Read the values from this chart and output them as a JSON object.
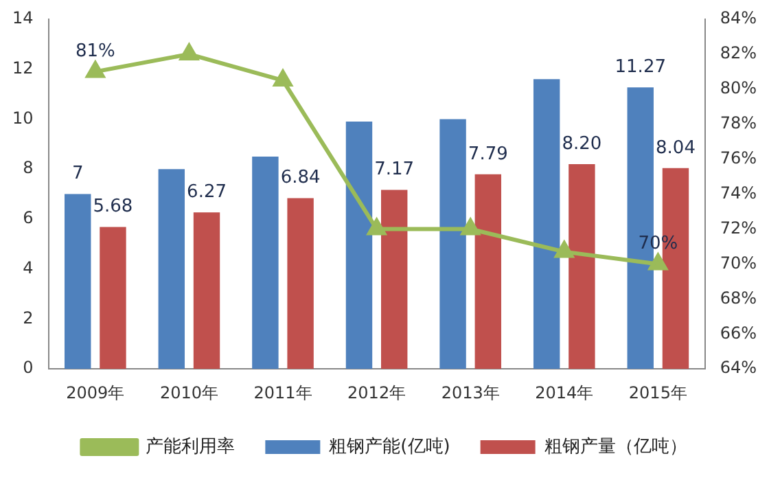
{
  "chart_data": {
    "type": "bar",
    "categories": [
      "2009年",
      "2010年",
      "2011年",
      "2012年",
      "2013年",
      "2014年",
      "2015年"
    ],
    "series": [
      {
        "name": "粗钢产能(亿吨)",
        "color": "#4f81bd",
        "values": [
          7,
          8,
          8.5,
          9.9,
          10,
          11.6,
          11.27
        ],
        "value_labels": [
          "7",
          null,
          null,
          null,
          null,
          null,
          "11.27"
        ]
      },
      {
        "name": "粗钢产量（亿吨）",
        "color": "#c0504d",
        "values": [
          5.68,
          6.27,
          6.84,
          7.17,
          7.79,
          8.2,
          8.04
        ],
        "value_labels": [
          "5.68",
          "6.27",
          "6.84",
          "7.17",
          "7.79",
          "8.20",
          "8.04"
        ]
      },
      {
        "name": "产能利用率",
        "type": "line",
        "axis": "y2",
        "color": "#9bbb59",
        "marker": "triangle",
        "values": [
          81,
          82,
          80.5,
          72,
          72,
          70.7,
          70
        ],
        "value_labels": [
          "81%",
          null,
          null,
          null,
          null,
          null,
          "70%"
        ]
      }
    ],
    "ylim": [
      0,
      14
    ],
    "yticks": [
      0,
      2,
      4,
      6,
      8,
      10,
      12,
      14
    ],
    "y2lim": [
      64,
      84
    ],
    "y2ticks": [
      {
        "value": 64,
        "label": "64%"
      },
      {
        "value": 66,
        "label": "66%"
      },
      {
        "value": 68,
        "label": "68%"
      },
      {
        "value": 70,
        "label": "70%"
      },
      {
        "value": 72,
        "label": "72%"
      },
      {
        "value": 74,
        "label": "74%"
      },
      {
        "value": 76,
        "label": "76%"
      },
      {
        "value": 78,
        "label": "78%"
      },
      {
        "value": 80,
        "label": "80%"
      },
      {
        "value": 82,
        "label": "82%"
      },
      {
        "value": 84,
        "label": "84%"
      }
    ],
    "grid": false,
    "legend": "bottom"
  }
}
